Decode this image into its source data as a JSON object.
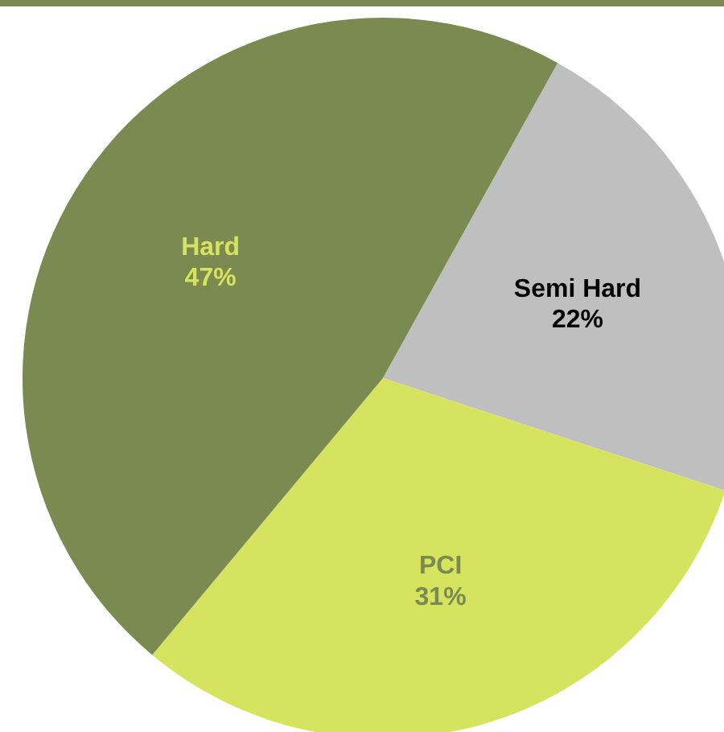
{
  "chart_data": {
    "type": "pie",
    "categories": [
      "Semi Hard",
      "PCI",
      "Hard"
    ],
    "values": [
      22,
      31,
      47
    ],
    "value_labels": [
      "22%",
      "31%",
      "47%"
    ],
    "colors": [
      "#bfbfbf",
      "#d6e35e",
      "#7a8a50"
    ]
  }
}
